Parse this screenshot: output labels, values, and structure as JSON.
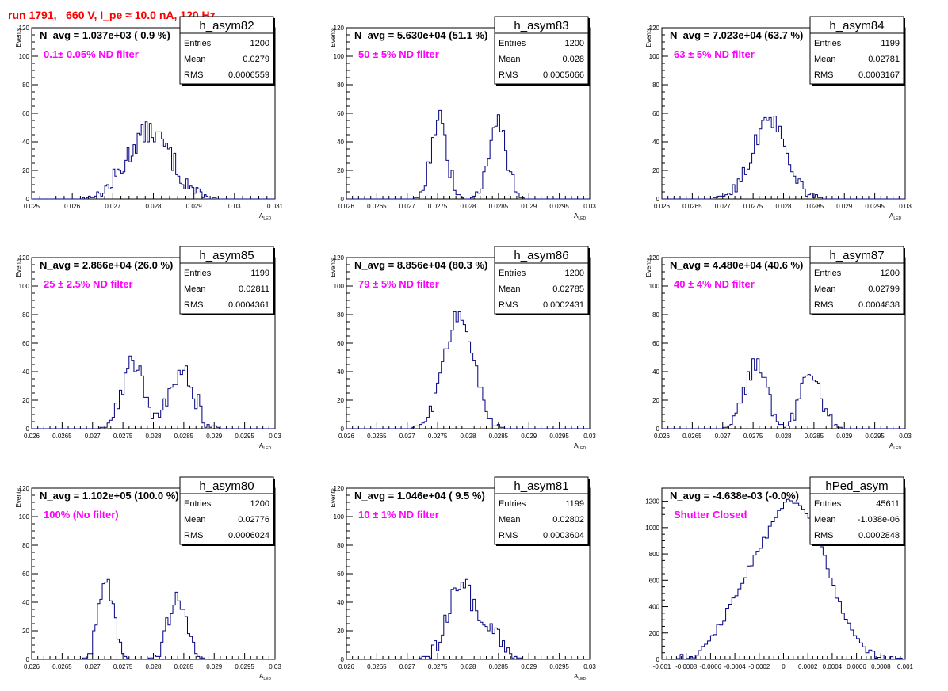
{
  "header": {
    "run_title": "run 1791,   660 V, I_pe ≈ 10.0 nA, 120 Hz"
  },
  "colors": {
    "line": "#000080",
    "annotation": "#ff00ff",
    "run_title": "#ff0000"
  },
  "chart_data": [
    {
      "type": "histogram",
      "name": "h_asym82",
      "title": "N_avg = 1.037e+03 ( 0.9 %)",
      "note": "0.1± 0.05% ND filter",
      "stats": {
        "entries": "1200",
        "mean": "0.0279",
        "rms": "0.0006559"
      },
      "xlabel": "A",
      "xlabel_sub": "LED",
      "ylabel": "Events",
      "xlim": [
        0.025,
        0.031
      ],
      "xticks": [
        0.025,
        0.026,
        0.027,
        0.028,
        0.029,
        0.03,
        0.031
      ],
      "xtick_labels": [
        "0.025",
        "0.026",
        "0.027",
        "0.028",
        "0.029",
        "0.03",
        "0.031"
      ],
      "ylim": [
        0,
        120
      ],
      "yticks": [
        0,
        20,
        40,
        60,
        80,
        100,
        120
      ],
      "peaks": [
        {
          "mu": 0.0279,
          "sigma": 0.00055,
          "amp": 47
        }
      ],
      "bin_width": 5e-05,
      "noise_amp": 8
    },
    {
      "type": "histogram",
      "name": "h_asym83",
      "title": "N_avg = 5.630e+04 (51.1 %)",
      "note": "50 ± 5% ND filter",
      "stats": {
        "entries": "1200",
        "mean": "0.028",
        "rms": "0.0005066"
      },
      "xlabel": "A",
      "xlabel_sub": "LED",
      "ylabel": "Events",
      "xlim": [
        0.026,
        0.03
      ],
      "xticks": [
        0.026,
        0.0265,
        0.027,
        0.0275,
        0.028,
        0.0285,
        0.029,
        0.0295,
        0.03
      ],
      "xtick_labels": [
        "0.026",
        "0.0265",
        "0.027",
        "0.0275",
        "0.028",
        "0.0285",
        "0.029",
        "0.0295",
        "0.03"
      ],
      "ylim": [
        0,
        120
      ],
      "yticks": [
        0,
        20,
        40,
        60,
        80,
        100,
        120
      ],
      "peaks": [
        {
          "mu": 0.02752,
          "sigma": 0.00013,
          "amp": 56
        },
        {
          "mu": 0.02848,
          "sigma": 0.00014,
          "amp": 58
        }
      ],
      "bin_width": 4e-05,
      "noise_amp": 7
    },
    {
      "type": "histogram",
      "name": "h_asym84",
      "title": "N_avg = 7.023e+04 (63.7 %)",
      "note": "63 ± 5% ND filter",
      "stats": {
        "entries": "1199",
        "mean": "0.02781",
        "rms": "0.0003167"
      },
      "xlabel": "A",
      "xlabel_sub": "LED",
      "ylabel": "Events",
      "xlim": [
        0.026,
        0.03
      ],
      "xticks": [
        0.026,
        0.0265,
        0.027,
        0.0275,
        0.028,
        0.0285,
        0.029,
        0.0295,
        0.03
      ],
      "xtick_labels": [
        "0.026",
        "0.0265",
        "0.027",
        "0.0275",
        "0.028",
        "0.0285",
        "0.029",
        "0.0295",
        "0.03"
      ],
      "ylim": [
        0,
        120
      ],
      "yticks": [
        0,
        20,
        40,
        60,
        80,
        100,
        120
      ],
      "peaks": [
        {
          "mu": 0.02775,
          "sigma": 0.0003,
          "amp": 47
        },
        {
          "mu": 0.0279,
          "sigma": 0.0002,
          "amp": 8
        }
      ],
      "bin_width": 4e-05,
      "noise_amp": 7
    },
    {
      "type": "histogram",
      "name": "h_asym85",
      "title": "N_avg = 2.866e+04 (26.0 %)",
      "note": "25 ± 2.5% ND filter",
      "stats": {
        "entries": "1199",
        "mean": "0.02811",
        "rms": "0.0004361"
      },
      "xlabel": "A",
      "xlabel_sub": "LED",
      "ylabel": "Events",
      "xlim": [
        0.026,
        0.03
      ],
      "xticks": [
        0.026,
        0.0265,
        0.027,
        0.0275,
        0.028,
        0.0285,
        0.029,
        0.0295,
        0.03
      ],
      "xtick_labels": [
        "0.026",
        "0.0265",
        "0.027",
        "0.0275",
        "0.028",
        "0.0285",
        "0.029",
        "0.0295",
        "0.03"
      ],
      "ylim": [
        0,
        120
      ],
      "yticks": [
        0,
        20,
        40,
        60,
        80,
        100,
        120
      ],
      "peaks": [
        {
          "mu": 0.02768,
          "sigma": 0.00018,
          "amp": 48
        },
        {
          "mu": 0.02848,
          "sigma": 0.0002,
          "amp": 40
        }
      ],
      "bin_width": 4e-05,
      "noise_amp": 8
    },
    {
      "type": "histogram",
      "name": "h_asym86",
      "title": "N_avg = 8.856e+04 (80.3 %)",
      "note": "79 ± 5% ND filter",
      "stats": {
        "entries": "1200",
        "mean": "0.02785",
        "rms": "0.0002431"
      },
      "xlabel": "A",
      "xlabel_sub": "LED",
      "ylabel": "Events",
      "xlim": [
        0.026,
        0.03
      ],
      "xticks": [
        0.026,
        0.0265,
        0.027,
        0.0275,
        0.028,
        0.0285,
        0.029,
        0.0295,
        0.03
      ],
      "xtick_labels": [
        "0.026",
        "0.0265",
        "0.027",
        "0.0275",
        "0.028",
        "0.0285",
        "0.029",
        "0.0295",
        "0.03"
      ],
      "ylim": [
        0,
        120
      ],
      "yticks": [
        0,
        20,
        40,
        60,
        80,
        100,
        120
      ],
      "peaks": [
        {
          "mu": 0.02785,
          "sigma": 0.00024,
          "amp": 80
        }
      ],
      "bin_width": 4e-05,
      "noise_amp": 6
    },
    {
      "type": "histogram",
      "name": "h_asym87",
      "title": "N_avg = 4.480e+04 (40.6 %)",
      "note": "40 ± 4% ND filter",
      "stats": {
        "entries": "1200",
        "mean": "0.02799",
        "rms": "0.0004838"
      },
      "xlabel": "A",
      "xlabel_sub": "LED",
      "ylabel": "Events",
      "xlim": [
        0.026,
        0.03
      ],
      "xticks": [
        0.026,
        0.0265,
        0.027,
        0.0275,
        0.028,
        0.0285,
        0.029,
        0.0295,
        0.03
      ],
      "xtick_labels": [
        "0.026",
        "0.0265",
        "0.027",
        "0.0275",
        "0.028",
        "0.0285",
        "0.029",
        "0.0295",
        "0.03"
      ],
      "ylim": [
        0,
        120
      ],
      "yticks": [
        0,
        20,
        40,
        60,
        80,
        100,
        120
      ],
      "peaks": [
        {
          "mu": 0.02755,
          "sigma": 0.00018,
          "amp": 44
        },
        {
          "mu": 0.02845,
          "sigma": 0.00017,
          "amp": 41
        }
      ],
      "bin_width": 4e-05,
      "noise_amp": 7
    },
    {
      "type": "histogram",
      "name": "h_asym80",
      "title": "N_avg = 1.102e+05 (100.0 %)",
      "note": "100% (No filter)",
      "stats": {
        "entries": "1200",
        "mean": "0.02776",
        "rms": "0.0006024"
      },
      "xlabel": "A",
      "xlabel_sub": "LED",
      "ylabel": "Events",
      "xlim": [
        0.026,
        0.03
      ],
      "xticks": [
        0.026,
        0.0265,
        0.027,
        0.0275,
        0.028,
        0.0285,
        0.029,
        0.0295,
        0.03
      ],
      "xtick_labels": [
        "0.026",
        "0.0265",
        "0.027",
        "0.0275",
        "0.028",
        "0.0285",
        "0.029",
        "0.0295",
        "0.03"
      ],
      "ylim": [
        0,
        120
      ],
      "yticks": [
        0,
        20,
        40,
        60,
        80,
        100,
        120
      ],
      "peaks": [
        {
          "mu": 0.02722,
          "sigma": 0.00012,
          "amp": 60
        },
        {
          "mu": 0.02838,
          "sigma": 0.00015,
          "amp": 42
        }
      ],
      "bin_width": 4e-05,
      "noise_amp": 7
    },
    {
      "type": "histogram",
      "name": "h_asym81",
      "title": "N_avg = 1.046e+04 ( 9.5 %)",
      "note": "10 ± 1% ND filter",
      "stats": {
        "entries": "1199",
        "mean": "0.02802",
        "rms": "0.0003604"
      },
      "xlabel": "A",
      "xlabel_sub": "LED",
      "ylabel": "Events",
      "xlim": [
        0.026,
        0.03
      ],
      "xticks": [
        0.026,
        0.0265,
        0.027,
        0.0275,
        0.028,
        0.0285,
        0.029,
        0.0295,
        0.03
      ],
      "xtick_labels": [
        "0.026",
        "0.0265",
        "0.027",
        "0.0275",
        "0.028",
        "0.0285",
        "0.029",
        "0.0295",
        "0.03"
      ],
      "ylim": [
        0,
        120
      ],
      "yticks": [
        0,
        20,
        40,
        60,
        80,
        100,
        120
      ],
      "peaks": [
        {
          "mu": 0.02788,
          "sigma": 0.00022,
          "amp": 55
        },
        {
          "mu": 0.0284,
          "sigma": 0.00018,
          "amp": 14
        }
      ],
      "bin_width": 4e-05,
      "noise_amp": 8
    },
    {
      "type": "histogram",
      "name": "hPed_asym",
      "title": "N_avg = -4.638e-03 (-0.0%)",
      "note": "Shutter Closed",
      "stats": {
        "entries": "45611",
        "mean": "-1.038e-06",
        "rms": "0.0002848"
      },
      "xlabel": "",
      "xlabel_sub": "",
      "ylabel": "",
      "xlim": [
        -0.001,
        0.001
      ],
      "xticks": [
        -0.001,
        -0.0008,
        -0.0006,
        -0.0004,
        -0.0002,
        0,
        0.0002,
        0.0004,
        0.0006,
        0.0008,
        0.001
      ],
      "xtick_labels": [
        "-0.001",
        "-0.0008",
        "-0.0006",
        "-0.0004",
        "-0.0002",
        "0",
        "0.0002",
        "0.0004",
        "0.0006",
        "0.0008",
        "0.001"
      ],
      "ylim": [
        0,
        1300
      ],
      "yticks": [
        0,
        200,
        400,
        600,
        800,
        1000,
        1200
      ],
      "peaks": [
        {
          "mu": 0.00012,
          "sigma": 0.00024,
          "amp": 1150
        },
        {
          "mu": -0.0003,
          "sigma": 0.0002,
          "amp": 420
        }
      ],
      "bin_width": 2.5e-05,
      "noise_amp": 30
    }
  ]
}
